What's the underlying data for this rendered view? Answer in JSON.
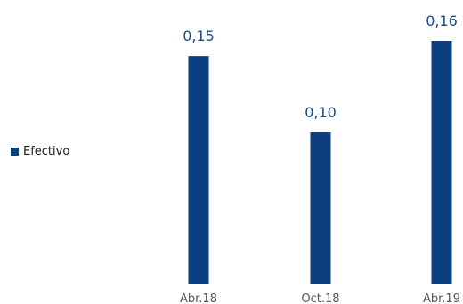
{
  "chart_data": {
    "type": "bar",
    "categories": [
      "Abr.18",
      "Oct.18",
      "Abr.19"
    ],
    "series": [
      {
        "name": "Efectivo",
        "values": [
          0.15,
          0.1,
          0.16
        ],
        "value_labels": [
          "0,15",
          "0,10",
          "0,16"
        ]
      }
    ],
    "ylim": [
      0,
      0.16
    ],
    "grid": false,
    "legend_placement": "left",
    "colors": {
      "bar": "#0b3f7f",
      "value_label": "#1d4a86",
      "tick_label": "#555555"
    }
  }
}
